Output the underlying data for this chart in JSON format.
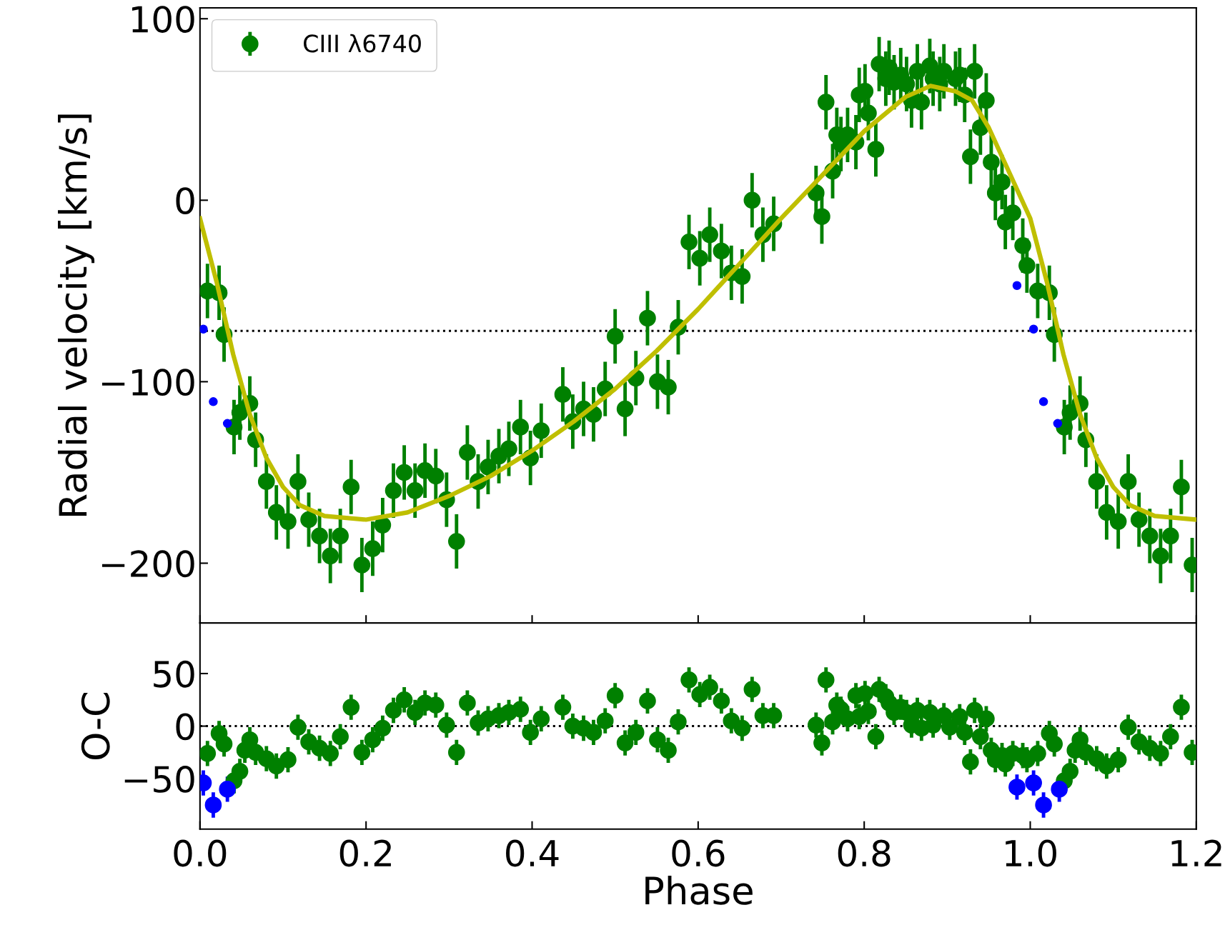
{
  "chart_data": [
    {
      "type": "scatter",
      "ylabel": "Radial velocity [km/s]",
      "xlim": [
        0,
        1.2
      ],
      "xticks": [
        {
          "value": 0,
          "label": null
        },
        {
          "value": 0.2,
          "label": null
        },
        {
          "value": 0.4,
          "label": null
        },
        {
          "value": 0.6,
          "label": null
        },
        {
          "value": 0.8,
          "label": null
        },
        {
          "value": 1.0,
          "label": null
        },
        {
          "value": 1.2,
          "label": null
        }
      ],
      "ylim": [
        -233,
        106
      ],
      "yticks": [
        {
          "value": -200,
          "label": "−200"
        },
        {
          "value": -100,
          "label": "−100"
        },
        0,
        100
      ],
      "tick_labels": "y",
      "legend": "top left",
      "marker": "circle",
      "ref_lines": [
        {
          "axis": "y",
          "value": -72,
          "color": "#000000",
          "line_style": "dotted"
        }
      ],
      "series": [
        {
          "name": "CIII λ6740",
          "color": "#008000",
          "x": [
            0.009,
            0.023,
            0.029,
            0.041,
            0.048,
            0.06,
            0.067,
            0.08,
            0.092,
            0.106,
            0.118,
            0.131,
            0.144,
            0.157,
            0.169,
            0.182,
            0.195,
            0.208,
            0.22,
            0.233,
            0.246,
            0.259,
            0.271,
            0.284,
            0.297,
            0.309,
            0.322,
            0.335,
            0.347,
            0.36,
            0.372,
            0.386,
            0.398,
            0.411,
            0.437,
            0.449,
            0.462,
            0.474,
            0.488,
            0.5,
            0.512,
            0.525,
            0.539,
            0.551,
            0.564,
            0.576,
            0.589,
            0.602,
            0.614,
            0.628,
            0.64,
            0.653,
            0.665,
            0.678,
            0.691,
            0.742,
            0.749,
            0.754,
            0.762,
            0.767,
            0.772,
            0.78,
            0.79,
            0.794,
            0.801,
            0.805,
            0.814,
            0.818,
            0.826,
            0.83,
            0.836,
            0.844,
            0.851,
            0.857,
            0.864,
            0.869,
            0.879,
            0.883,
            0.891,
            0.896,
            0.91,
            0.915,
            0.921,
            0.928,
            0.933,
            0.94,
            0.947,
            0.953,
            0.958,
            0.966,
            0.97,
            0.979,
            0.991,
            0.996,
            1.009,
            1.023,
            1.029,
            1.041,
            1.048,
            1.06,
            1.067,
            1.08,
            1.092,
            1.106,
            1.118,
            1.131,
            1.144,
            1.157,
            1.169,
            1.182,
            1.195
          ],
          "values": [
            -50,
            -51,
            -74,
            -125,
            -117,
            -112,
            -132,
            -155,
            -172,
            -177,
            -155,
            -176,
            -185,
            -196,
            -185,
            -158,
            -201,
            -192,
            -179,
            -160,
            -150,
            -160,
            -149,
            -152,
            -165,
            -188,
            -139,
            -155,
            -147,
            -141,
            -137,
            -125,
            -142,
            -127,
            -107,
            -122,
            -115,
            -118,
            -104,
            -75,
            -115,
            -98,
            -65,
            -100,
            -103,
            -70,
            -23,
            -32,
            -19,
            -28,
            -40,
            -42,
            0,
            -19,
            -13,
            4,
            -9,
            54,
            16,
            36,
            31,
            36,
            32,
            58,
            60,
            48,
            28,
            75,
            67,
            73,
            65,
            69,
            64,
            55,
            71,
            54,
            74,
            67,
            64,
            71,
            67,
            69,
            58,
            24,
            71,
            40,
            55,
            21,
            4,
            10,
            -12,
            -7,
            -25,
            -36,
            -50,
            -51,
            -74,
            -125,
            -117,
            -112,
            -132,
            -155,
            -172,
            -177,
            -155,
            -176,
            -185,
            -196,
            -185,
            -158,
            -201
          ],
          "errors": [
            15,
            15,
            15,
            15,
            15,
            15,
            15,
            15,
            15,
            15,
            15,
            15,
            15,
            15,
            15,
            15,
            15,
            15,
            15,
            15,
            15,
            15,
            15,
            15,
            15,
            15,
            15,
            15,
            15,
            15,
            15,
            15,
            15,
            15,
            15,
            15,
            15,
            15,
            15,
            15,
            15,
            15,
            15,
            15,
            15,
            15,
            15,
            15,
            15,
            15,
            15,
            15,
            15,
            15,
            15,
            15,
            15,
            15,
            15,
            15,
            15,
            15,
            15,
            15,
            15,
            15,
            15,
            15,
            15,
            15,
            15,
            15,
            15,
            15,
            15,
            15,
            15,
            15,
            15,
            15,
            15,
            15,
            15,
            15,
            15,
            15,
            15,
            15,
            15,
            15,
            15,
            15,
            15,
            15,
            15,
            15,
            15,
            15,
            15,
            15,
            15,
            15,
            15,
            15,
            15,
            15,
            15,
            15,
            15,
            15,
            15
          ]
        },
        {
          "color": "#0000ff",
          "x": [
            0.004,
            0.016,
            0.033,
            0.984,
            1.004,
            1.016,
            1.033
          ],
          "values": [
            -71,
            -111,
            -123,
            -47,
            -71,
            -111,
            -123
          ]
        },
        {
          "type": "line",
          "marker": "none",
          "color": "#bfbf00",
          "x": [
            0,
            0.02,
            0.04,
            0.06,
            0.08,
            0.1,
            0.12,
            0.15,
            0.2,
            0.25,
            0.3,
            0.35,
            0.4,
            0.45,
            0.5,
            0.55,
            0.6,
            0.65,
            0.7,
            0.75,
            0.8,
            0.85,
            0.88,
            0.91,
            0.93,
            0.95,
            0.97,
            1.0,
            1.02,
            1.04,
            1.06,
            1.08,
            1.1,
            1.12,
            1.15,
            1.2
          ],
          "values": [
            -10,
            -45,
            -85,
            -118,
            -142,
            -158,
            -168,
            -174,
            -176,
            -172,
            -163,
            -152,
            -138,
            -122,
            -104,
            -83,
            -60,
            -35,
            -10,
            14,
            38,
            57,
            63,
            60,
            55,
            40,
            20,
            -10,
            -45,
            -85,
            -118,
            -142,
            -158,
            -168,
            -174,
            -176
          ]
        }
      ]
    },
    {
      "type": "scatter",
      "xlabel": "Phase",
      "ylabel": "O-C",
      "xlim": [
        0,
        1.2
      ],
      "xticks": [
        {
          "value": 0,
          "label": "0.0"
        },
        0.2,
        0.4,
        0.6,
        0.8,
        {
          "value": 1.0,
          "label": "1.0"
        },
        1.2
      ],
      "ylim": [
        -98,
        98
      ],
      "yticks": [
        {
          "value": -50,
          "label": "−50"
        },
        0,
        50
      ],
      "marker": "circle",
      "ref_lines": [
        {
          "axis": "y",
          "value": 0,
          "color": "#000000",
          "line_style": "dotted"
        }
      ],
      "series": [
        {
          "color": "#008000",
          "x": [
            0.009,
            0.023,
            0.029,
            0.041,
            0.048,
            0.054,
            0.06,
            0.067,
            0.08,
            0.092,
            0.106,
            0.118,
            0.131,
            0.144,
            0.157,
            0.169,
            0.182,
            0.195,
            0.208,
            0.22,
            0.233,
            0.246,
            0.259,
            0.271,
            0.284,
            0.297,
            0.309,
            0.322,
            0.335,
            0.347,
            0.36,
            0.372,
            0.386,
            0.398,
            0.411,
            0.437,
            0.449,
            0.462,
            0.474,
            0.488,
            0.5,
            0.512,
            0.525,
            0.539,
            0.551,
            0.564,
            0.576,
            0.589,
            0.602,
            0.614,
            0.628,
            0.64,
            0.653,
            0.665,
            0.678,
            0.691,
            0.742,
            0.749,
            0.754,
            0.762,
            0.767,
            0.772,
            0.78,
            0.79,
            0.794,
            0.801,
            0.805,
            0.814,
            0.818,
            0.826,
            0.83,
            0.836,
            0.844,
            0.851,
            0.857,
            0.864,
            0.869,
            0.879,
            0.883,
            0.896,
            0.903,
            0.915,
            0.921,
            0.928,
            0.933,
            0.94,
            0.947,
            0.953,
            0.958,
            0.966,
            0.97,
            0.979,
            0.991,
            0.996,
            1.009,
            1.023,
            1.029,
            1.041,
            1.048,
            1.054,
            1.06,
            1.067,
            1.08,
            1.092,
            1.106,
            1.118,
            1.131,
            1.144,
            1.157,
            1.169,
            1.182,
            1.195
          ],
          "values": [
            -26,
            -7,
            -17,
            -52,
            -43,
            -23,
            -13,
            -25,
            -31,
            -38,
            -32,
            -1,
            -15,
            -21,
            -26,
            -10,
            18,
            -25,
            -13,
            -2,
            15,
            25,
            13,
            22,
            20,
            1,
            -25,
            22,
            3,
            7,
            10,
            13,
            16,
            -6,
            7,
            18,
            0,
            -2,
            -6,
            5,
            29,
            -16,
            -6,
            24,
            -13,
            -23,
            4,
            44,
            30,
            37,
            24,
            5,
            -2,
            35,
            10,
            10,
            1,
            -16,
            44,
            4,
            20,
            16,
            7,
            29,
            9,
            31,
            14,
            -10,
            35,
            28,
            22,
            13,
            18,
            13,
            1,
            15,
            -2,
            13,
            1,
            10,
            -1,
            9,
            -6,
            -34,
            15,
            -10,
            7,
            -23,
            -32,
            -28,
            -36,
            -26,
            -28,
            -32,
            -26,
            -7,
            -17,
            -52,
            -43,
            -23,
            -13,
            -25,
            -31,
            -38,
            -32,
            -1,
            -15,
            -21,
            -26,
            -10,
            18,
            -25
          ],
          "errors": [
            12,
            12,
            12,
            12,
            12,
            12,
            12,
            12,
            12,
            12,
            12,
            12,
            12,
            12,
            12,
            12,
            12,
            12,
            12,
            12,
            12,
            12,
            12,
            12,
            12,
            12,
            12,
            12,
            12,
            12,
            12,
            12,
            12,
            12,
            12,
            12,
            12,
            12,
            12,
            12,
            12,
            12,
            12,
            12,
            12,
            12,
            12,
            12,
            12,
            12,
            12,
            12,
            12,
            12,
            12,
            12,
            12,
            12,
            12,
            12,
            12,
            12,
            12,
            12,
            12,
            12,
            12,
            12,
            12,
            12,
            12,
            12,
            12,
            12,
            12,
            12,
            12,
            12,
            12,
            12,
            12,
            12,
            12,
            12,
            12,
            12,
            12,
            12,
            12,
            12,
            12,
            12,
            12,
            12,
            12,
            12,
            12,
            12,
            12,
            12,
            12,
            12,
            12,
            12,
            12,
            12,
            12,
            12,
            12,
            12,
            12,
            12
          ]
        },
        {
          "color": "#0000ff",
          "x": [
            0.004,
            0.016,
            0.033,
            0.984,
            1.004,
            1.016,
            1.035
          ],
          "values": [
            -54,
            -75,
            -60,
            -58,
            -54,
            -75,
            -60
          ],
          "errors": [
            12,
            12,
            12,
            12,
            12,
            12,
            12
          ]
        }
      ]
    }
  ]
}
